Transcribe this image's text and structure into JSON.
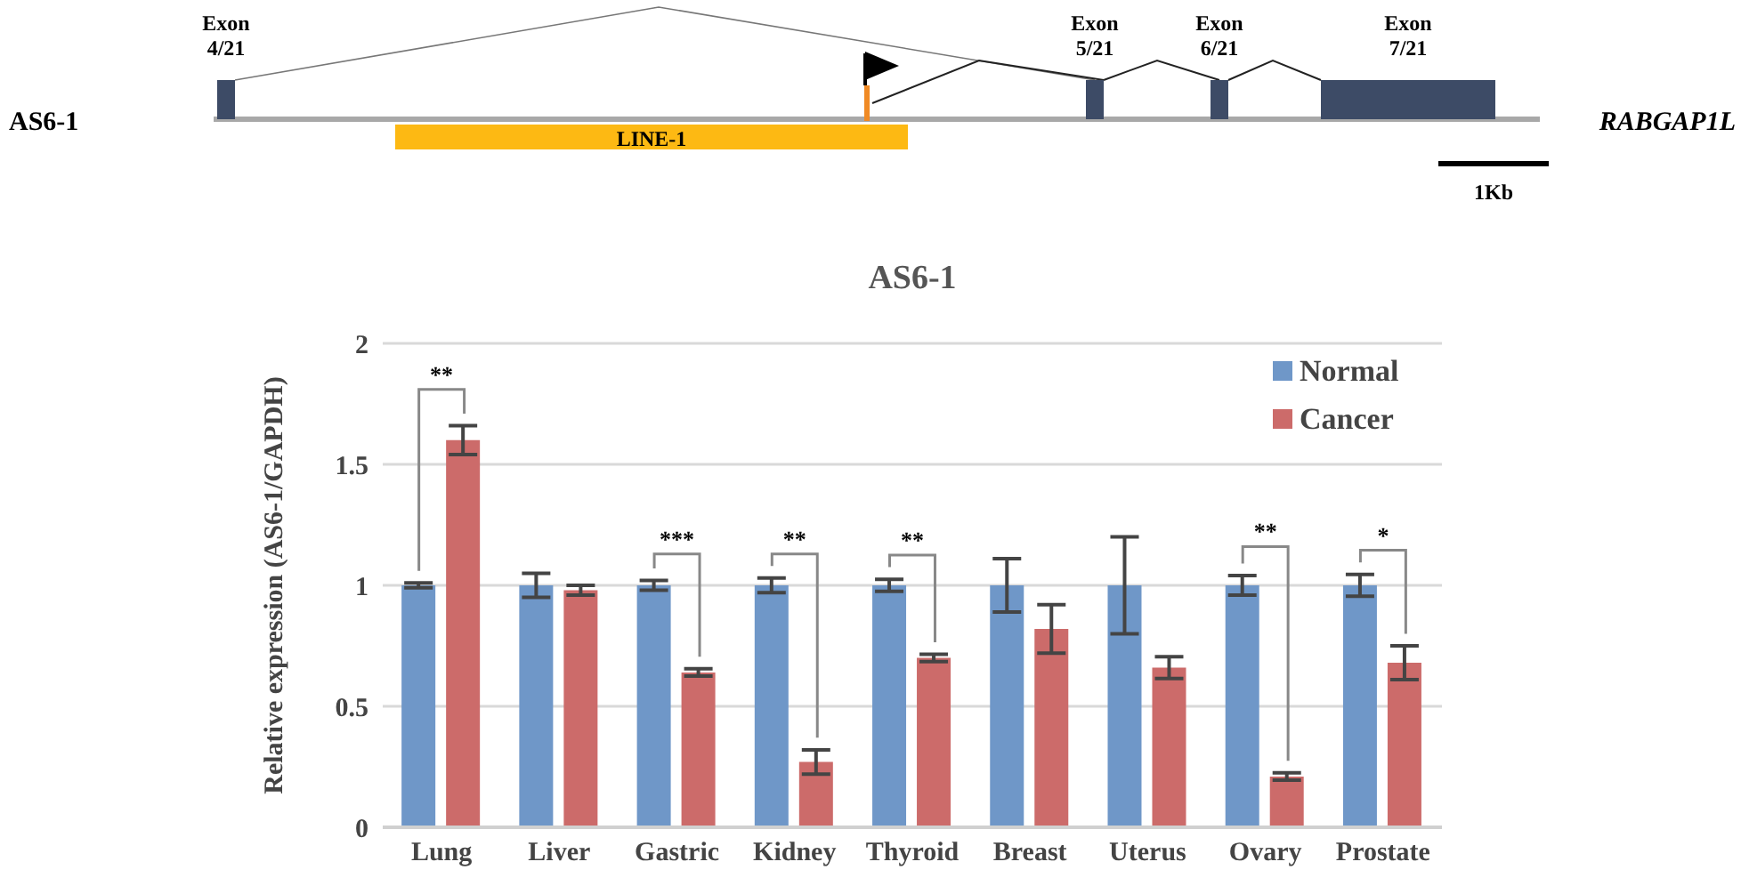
{
  "chart_data": {
    "type": "bar",
    "title": "AS6-1",
    "ylabel": "Relative expression (AS6-1/GAPDH)",
    "categories": [
      "Lung",
      "Liver",
      "Gastric",
      "Kidney",
      "Thyroid",
      "Breast",
      "Uterus",
      "Ovary",
      "Prostate"
    ],
    "series": [
      {
        "name": "Normal",
        "color": "#6f97c8",
        "values": [
          1,
          1,
          1,
          1,
          1,
          1,
          1,
          1,
          1
        ],
        "errors": [
          0.01,
          0.05,
          0.02,
          0.03,
          0.025,
          0.11,
          0.2,
          0.04,
          0.045
        ]
      },
      {
        "name": "Cancer",
        "color": "#cc6b6a",
        "values": [
          1.6,
          0.98,
          0.64,
          0.27,
          0.7,
          0.82,
          0.66,
          0.21,
          0.68
        ],
        "errors": [
          0.06,
          0.02,
          0.015,
          0.05,
          0.015,
          0.1,
          0.045,
          0.015,
          0.07
        ]
      }
    ],
    "ylim": [
      0,
      2
    ],
    "yticks": [
      0,
      0.5,
      1,
      1.5,
      2
    ],
    "grid": "y",
    "legend": "top right",
    "annotations": [
      "AS6-1",
      "RABGAP1L",
      "Exon 4/21",
      "Exon 5/21",
      "Exon 6/21",
      "Exon 7/21",
      "LINE-1",
      "1Kb",
      "**",
      "***",
      "**",
      "**",
      "**",
      "*"
    ]
  }
}
